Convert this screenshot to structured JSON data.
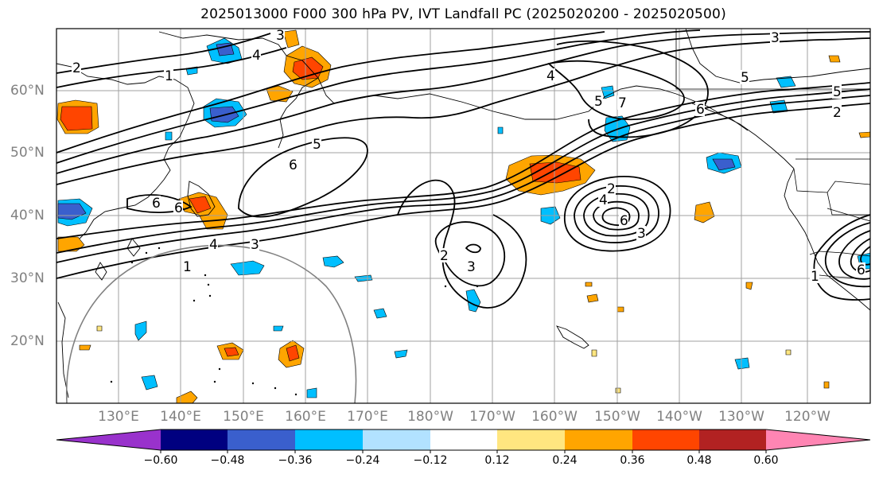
{
  "title": "2025013000 F000 300 hPa PV, IVT Landfall PC (2025020200 - 2025020500)",
  "map": {
    "lat_labels": [
      "60°N",
      "50°N",
      "40°N",
      "30°N",
      "20°N"
    ],
    "lon_labels": [
      "130°E",
      "140°E",
      "150°E",
      "160°E",
      "170°E",
      "180°W",
      "170°W",
      "160°W",
      "150°W",
      "140°W",
      "130°W",
      "120°W"
    ],
    "contour_labels": [
      "1",
      "2",
      "3",
      "4",
      "5",
      "6",
      "5",
      "6",
      "6",
      "1",
      "3",
      "4",
      "2",
      "3",
      "2",
      "4",
      "6",
      "3",
      "5",
      "2",
      "6",
      "3",
      "4",
      "5",
      "6",
      "7",
      "1"
    ],
    "colors": {
      "grid": "#a0a0a0",
      "coast": "#000000",
      "contour": "#000000",
      "circle": "#808080"
    }
  },
  "colorbar": {
    "tick_labels": [
      "−0.60",
      "−0.48",
      "−0.36",
      "−0.24",
      "−0.12",
      "0.12",
      "0.24",
      "0.36",
      "0.48",
      "0.60"
    ],
    "colors": [
      "#9932cc",
      "#000080",
      "#3a5fcd",
      "#00bfff",
      "#b2e2ff",
      "#ffffff",
      "#ffe680",
      "#ffa500",
      "#ff4500",
      "#b22222",
      "#ff85b3"
    ]
  }
}
